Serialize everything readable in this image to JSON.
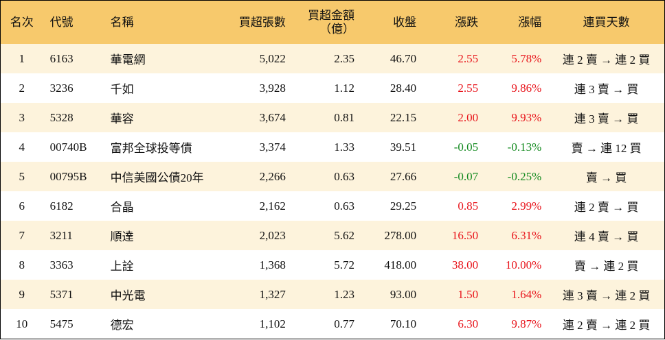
{
  "table": {
    "header": [
      "名次",
      "代號",
      "名稱",
      "買超張數",
      "買超金額\n（億）",
      "收盤",
      "漲跌",
      "漲幅",
      "連買天數"
    ],
    "rows": [
      [
        "1",
        "6163",
        "華電網",
        "5,022",
        "2.35",
        "46.70",
        "2.55",
        "5.78%",
        "連 2 賣 → 連 2 買"
      ],
      [
        "2",
        "3236",
        "千如",
        "3,928",
        "1.12",
        "28.40",
        "2.55",
        "9.86%",
        "連 3 賣 → 買"
      ],
      [
        "3",
        "5328",
        "華容",
        "3,674",
        "0.81",
        "22.15",
        "2.00",
        "9.93%",
        "連 3 賣 → 買"
      ],
      [
        "4",
        "00740B",
        "富邦全球投等債",
        "3,374",
        "1.33",
        "39.51",
        "-0.05",
        "-0.13%",
        "賣 → 連 12 買"
      ],
      [
        "5",
        "00795B",
        "中信美國公債20年",
        "2,266",
        "0.63",
        "27.66",
        "-0.07",
        "-0.25%",
        "賣 → 買"
      ],
      [
        "6",
        "6182",
        "合晶",
        "2,162",
        "0.63",
        "29.25",
        "0.85",
        "2.99%",
        "連 2 賣 → 買"
      ],
      [
        "7",
        "3211",
        "順達",
        "2,023",
        "5.62",
        "278.00",
        "16.50",
        "6.31%",
        "連 4 賣 → 買"
      ],
      [
        "8",
        "3363",
        "上詮",
        "1,368",
        "5.72",
        "418.00",
        "38.00",
        "10.00%",
        "賣 → 連 2 買"
      ],
      [
        "9",
        "5371",
        "中光電",
        "1,327",
        "1.23",
        "93.00",
        "1.50",
        "1.64%",
        "連 3 賣 → 連 2 買"
      ],
      [
        "10",
        "5475",
        "德宏",
        "1,102",
        "0.77",
        "70.10",
        "6.30",
        "9.87%",
        "連 2 賣 → 連 2 買"
      ]
    ]
  }
}
